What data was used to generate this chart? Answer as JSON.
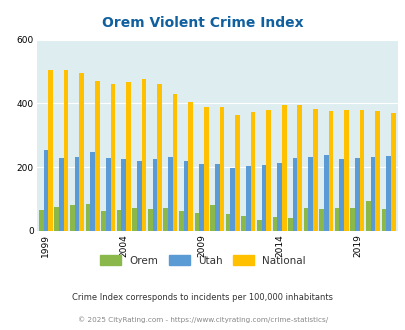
{
  "title": "Orem Violent Crime Index",
  "title_color": "#1060a0",
  "years": [
    1999,
    2000,
    2001,
    2002,
    2003,
    2004,
    2005,
    2006,
    2007,
    2008,
    2009,
    2010,
    2011,
    2012,
    2013,
    2014,
    2015,
    2016,
    2017,
    2018,
    2019,
    2020,
    2021
  ],
  "orem": [
    65,
    75,
    80,
    85,
    63,
    65,
    72,
    68,
    72,
    62,
    55,
    80,
    52,
    48,
    36,
    44,
    40,
    72,
    70,
    72,
    72,
    95,
    70
  ],
  "utah": [
    255,
    228,
    232,
    248,
    228,
    225,
    220,
    225,
    232,
    218,
    210,
    210,
    198,
    203,
    208,
    213,
    230,
    233,
    237,
    227,
    230,
    233,
    235
  ],
  "national": [
    505,
    505,
    495,
    470,
    462,
    468,
    475,
    462,
    430,
    405,
    390,
    388,
    365,
    372,
    380,
    395,
    394,
    382,
    375,
    378,
    380,
    375,
    370
  ],
  "orem_color": "#8ab84a",
  "utah_color": "#5b9bd5",
  "national_color": "#ffc000",
  "bg_color": "#deeef0",
  "ylim": [
    0,
    600
  ],
  "yticks": [
    0,
    200,
    400,
    600
  ],
  "xticks": [
    1999,
    2004,
    2009,
    2014,
    2019
  ],
  "legend_labels": [
    "Orem",
    "Utah",
    "National"
  ],
  "footnote1": "Crime Index corresponds to incidents per 100,000 inhabitants",
  "footnote2": "© 2025 CityRating.com - https://www.cityrating.com/crime-statistics/",
  "footnote1_color": "#333333",
  "footnote2_color": "#888888"
}
